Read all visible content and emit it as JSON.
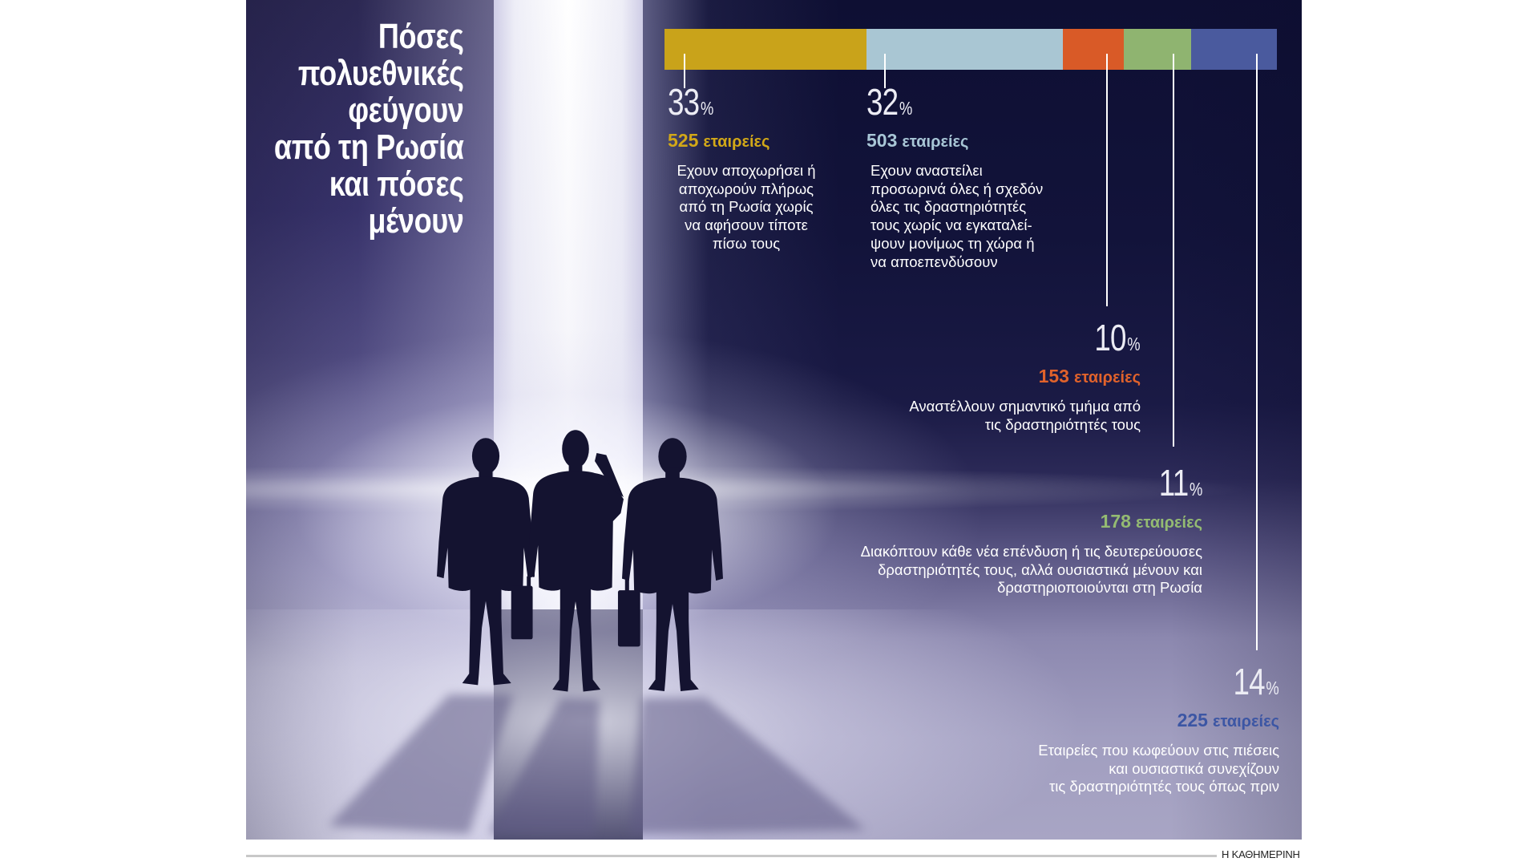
{
  "chart_data": {
    "type": "bar",
    "orientation": "horizontal",
    "stacked": true,
    "title": "Πόσες\nπολυεθνικές\nφεύγουν\nαπό τη Ρωσία\nκαι πόσες\nμένουν",
    "value_unit": "%",
    "count_unit": "εταιρείες",
    "xlim": [
      0,
      100
    ],
    "segments": [
      {
        "value": 33,
        "count": 525,
        "color": "#c9a31a",
        "label_color": "#d2a818",
        "description": "Εχουν αποχωρήσει ή\nαποχωρούν πλήρως\nαπό τη Ρωσία χωρίς\nνα αφήσουν τίποτε\nπίσω τους"
      },
      {
        "value": 32,
        "count": 503,
        "color": "#a9c6d3",
        "label_color": "#a8c6d6",
        "description": "Εχουν αναστείλει\nπροσωρινά όλες ή σχεδόν\nόλες τις δραστηριότητές\nτους χωρίς να εγκαταλεί-\nψουν μονίμως τη χώρα ή\nνα αποεπενδύσουν"
      },
      {
        "value": 10,
        "count": 153,
        "color": "#d95a27",
        "label_color": "#e0622b",
        "description": "Αναστέλλουν σημαντικό τμήμα από\nτις δραστηριότητές τους"
      },
      {
        "value": 11,
        "count": 178,
        "color": "#8fb470",
        "label_color": "#94bb72",
        "description": "Διακόπτουν κάθε νέα επένδυση ή τις δευτερεύουσες\nδραστηριότητές τους, αλλά ουσιαστικά μένουν και\nδραστηριοποιούνται στη Ρωσία"
      },
      {
        "value": 14,
        "count": 225,
        "color": "#4a5a9e",
        "label_color": "#3c56a4",
        "description": "Εταιρείες που κωφεύουν στις πιέσεις\nκαι ουσιαστικά συνεχίζουν\nτις δραστηριότητές τους όπως πριν"
      }
    ]
  },
  "credit": "Η ΚΑΘΗΜΕΡΙΝΗ",
  "colors": {
    "leader_line": "#ffffff",
    "silhouette": "#141330",
    "shadow": "#5e5a85"
  }
}
